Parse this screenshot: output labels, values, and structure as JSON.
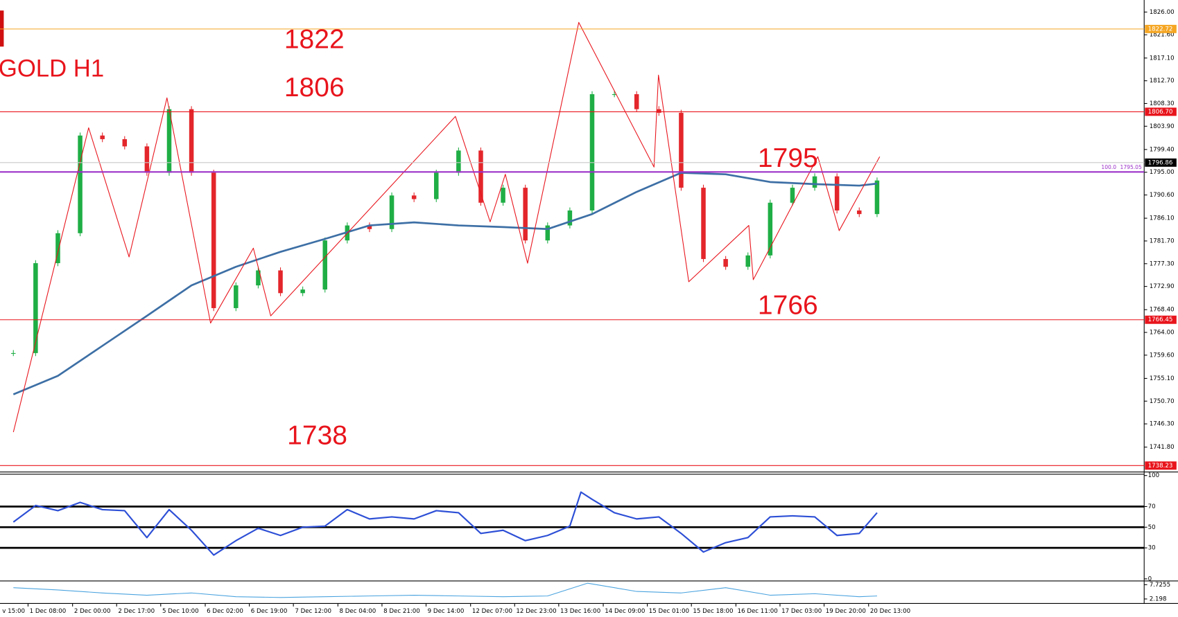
{
  "chart_data": {
    "type": "candlestick",
    "symbol_label": "GOLD H1",
    "up_color": "#1fae45",
    "down_color": "#e3262b",
    "x": [
      0,
      0.5,
      1,
      1.5,
      2,
      2.5,
      3,
      3.5,
      4,
      4.5,
      5,
      5.5,
      6,
      6.5,
      7,
      7.5,
      8,
      8.5,
      9,
      9.5,
      10,
      10.5,
      11,
      11.5,
      12,
      12.5,
      13,
      13.5,
      14,
      14.5,
      15,
      15.5,
      16,
      16.5,
      17,
      17.5,
      18,
      18.5,
      19,
      19.4
    ],
    "values": [
      1760.0,
      1777.4,
      1783.2,
      1802.1,
      1801.4,
      1800.0,
      1794.9,
      1807.2,
      1794.9,
      1768.7,
      1773.1,
      1776.0,
      1771.6,
      1772.3,
      1781.8,
      1784.7,
      1784.0,
      1790.5,
      1789.8,
      1794.9,
      1799.2,
      1789.1,
      1792.0,
      1781.8,
      1784.7,
      1787.6,
      1810.1,
      1810.1,
      1807.2,
      1806.5,
      1792.0,
      1778.2,
      1776.7,
      1778.9,
      1789.1,
      1792.0,
      1794.2,
      1787.6,
      1786.9,
      1793.4
    ],
    "xlim": [
      -0.3,
      25.4
    ],
    "xticks": [
      {
        "value": -0.66,
        "label": "v 15:00"
      },
      {
        "value": 0.33,
        "label": "1 Dec 08:00"
      },
      {
        "value": 1.33,
        "label": "2 Dec 00:00"
      },
      {
        "value": 2.32,
        "label": "2 Dec 17:00"
      },
      {
        "value": 3.31,
        "label": "5 Dec 10:00"
      },
      {
        "value": 4.31,
        "label": "6 Dec 02:00"
      },
      {
        "value": 5.3,
        "label": "6 Dec 19:00"
      },
      {
        "value": 6.29,
        "label": "7 Dec 12:00"
      },
      {
        "value": 7.29,
        "label": "8 Dec 04:00"
      },
      {
        "value": 8.28,
        "label": "8 Dec 21:00"
      },
      {
        "value": 9.27,
        "label": "9 Dec 14:00"
      },
      {
        "value": 10.27,
        "label": "12 Dec 07:00"
      },
      {
        "value": 11.26,
        "label": "12 Dec 23:00"
      },
      {
        "value": 12.25,
        "label": "13 Dec 16:00"
      },
      {
        "value": 13.25,
        "label": "14 Dec 09:00"
      },
      {
        "value": 14.24,
        "label": "15 Dec 01:00"
      },
      {
        "value": 15.23,
        "label": "15 Dec 18:00"
      },
      {
        "value": 16.23,
        "label": "16 Dec 11:00"
      },
      {
        "value": 17.22,
        "label": "17 Dec 03:00"
      },
      {
        "value": 18.21,
        "label": "19 Dec 20:00"
      },
      {
        "value": 19.21,
        "label": "20 Dec 13:00"
      }
    ],
    "ylim": [
      1737.14,
      1828.33
    ],
    "yticks": [
      {
        "value": 1826,
        "label": "1826.00"
      },
      {
        "value": 1821.6,
        "label": "1821.60"
      },
      {
        "value": 1817.1,
        "label": "1817.10"
      },
      {
        "value": 1812.7,
        "label": "1812.70"
      },
      {
        "value": 1808.3,
        "label": "1808.30"
      },
      {
        "value": 1803.9,
        "label": "1803.90"
      },
      {
        "value": 1799.4,
        "label": "1799.40"
      },
      {
        "value": 1795,
        "label": "1795.00"
      },
      {
        "value": 1790.6,
        "label": "1790.60"
      },
      {
        "value": 1786.1,
        "label": "1786.10"
      },
      {
        "value": 1781.7,
        "label": "1781.70"
      },
      {
        "value": 1777.3,
        "label": "1777.30"
      },
      {
        "value": 1772.9,
        "label": "1772.90"
      },
      {
        "value": 1768.4,
        "label": "1768.40"
      },
      {
        "value": 1764,
        "label": "1764.00"
      },
      {
        "value": 1759.6,
        "label": "1759.60"
      },
      {
        "value": 1755.1,
        "label": "1755.10"
      },
      {
        "value": 1750.7,
        "label": "1750.70"
      },
      {
        "value": 1746.3,
        "label": "1746.30"
      },
      {
        "value": 1741.8,
        "label": "1741.80"
      }
    ],
    "moving_average": {
      "color": "#3d6fa5",
      "x": [
        0,
        1,
        2,
        3,
        4,
        5,
        6,
        7,
        8,
        9,
        10,
        11,
        12,
        13,
        14,
        15,
        16,
        17,
        18,
        19,
        19.4
      ],
      "values": [
        1752.0,
        1755.6,
        1761.4,
        1767.2,
        1773.1,
        1776.7,
        1779.6,
        1782.1,
        1784.7,
        1785.3,
        1784.7,
        1784.4,
        1784.0,
        1786.9,
        1791.2,
        1794.9,
        1794.6,
        1793.1,
        1792.7,
        1792.4,
        1792.8
      ]
    },
    "zigzag": {
      "color": "#e8141c",
      "x": [
        0,
        1.69,
        2.6,
        3.45,
        4.43,
        5.39,
        5.78,
        9.93,
        10.71,
        11.05,
        11.55,
        12.7,
        14.39,
        14.49,
        15.17,
        16.52,
        16.62,
        18.07,
        18.55,
        19.46
      ],
      "values": [
        1744.7,
        1803.6,
        1778.6,
        1809.4,
        1765.8,
        1780.3,
        1767.2,
        1805.8,
        1785.4,
        1794.6,
        1777.4,
        1824.0,
        1796.0,
        1813.8,
        1773.8,
        1784.7,
        1774.2,
        1798.0,
        1783.7,
        1798.0
      ]
    },
    "levels": [
      {
        "value": 1822.72,
        "color": "#f5a623",
        "box_color": "#f5a623"
      },
      {
        "value": 1806.7,
        "label": "1806.70",
        "color": "#e8141c",
        "box_color": "#e8141c"
      },
      {
        "value": 1796.86,
        "color": "#c8c8c8",
        "box_color": "#000000"
      },
      {
        "value": 1766.45,
        "color": "#e8141c",
        "box_color": "#e8141c"
      },
      {
        "value": 1738.23,
        "color": "#e8141c",
        "box_color": "#e8141c"
      }
    ],
    "fib": {
      "level": "100.0",
      "value": 1795.05,
      "color": "#9b30c8"
    },
    "annotations": [
      "1822",
      "1806",
      "1738",
      "1795",
      "1766"
    ],
    "rsi": {
      "color": "#2d4fd6",
      "ylim": [
        0,
        100
      ],
      "yticks": [
        100,
        70,
        50,
        30,
        0
      ],
      "levels": [
        70,
        50,
        30
      ],
      "x": [
        0,
        0.5,
        1,
        1.5,
        2,
        2.5,
        3,
        3.5,
        4,
        4.5,
        5,
        5.5,
        6,
        6.5,
        7,
        7.5,
        8,
        8.5,
        9,
        9.5,
        10,
        10.5,
        11,
        11.5,
        12,
        12.5,
        12.75,
        13,
        13.5,
        14,
        14.5,
        15,
        15.5,
        16,
        16.5,
        17,
        17.5,
        18,
        18.5,
        19,
        19.4
      ],
      "values": [
        55,
        71,
        66,
        74,
        67,
        66,
        40,
        67,
        47,
        23,
        37,
        49,
        42,
        50,
        51,
        67,
        58,
        60,
        58,
        66,
        64,
        44,
        47,
        37,
        42,
        51,
        84,
        77,
        64,
        58,
        60,
        44,
        26,
        35,
        40,
        60,
        61,
        60,
        42,
        44,
        64
      ]
    },
    "atr": {
      "color": "#4aa3df",
      "ylim": [
        0.45,
        8.6
      ],
      "yticks": [
        7.7255,
        2.198
      ],
      "x": [
        0,
        1,
        2,
        3,
        4,
        5,
        6,
        7,
        8,
        9,
        10,
        11,
        12,
        12.9,
        14,
        15,
        16,
        17,
        18,
        19,
        19.4
      ],
      "values": [
        6.56,
        5.69,
        4.53,
        3.66,
        4.53,
        3.07,
        2.78,
        3.07,
        3.37,
        3.66,
        3.37,
        3.07,
        3.37,
        8.3,
        5.11,
        4.53,
        6.56,
        3.66,
        4.24,
        3.07,
        3.37
      ]
    }
  }
}
